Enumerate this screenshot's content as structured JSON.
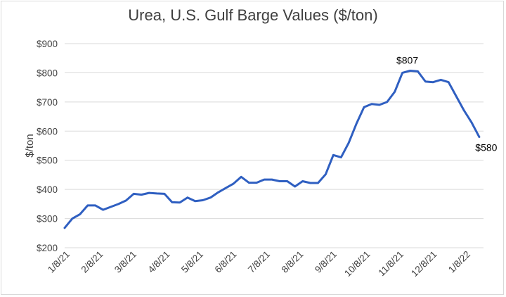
{
  "chart_data": {
    "type": "line",
    "title": "Urea, U.S. Gulf Barge Values ($/ton)",
    "xlabel": "",
    "ylabel": "$/ton",
    "ylim": [
      200,
      900
    ],
    "y_ticks": [
      "$200",
      "$300",
      "$400",
      "$500",
      "$600",
      "$700",
      "$800",
      "$900"
    ],
    "y_tick_values": [
      200,
      300,
      400,
      500,
      600,
      700,
      800,
      900
    ],
    "x_ticks": [
      "1/8/21",
      "2/8/21",
      "3/8/21",
      "4/8/21",
      "5/8/21",
      "6/8/21",
      "7/8/21",
      "8/8/21",
      "9/8/21",
      "10/8/21",
      "11/8/21",
      "12/8/21",
      "1/8/22"
    ],
    "grid": true,
    "legend": "none",
    "series": [
      {
        "name": "Urea, U.S. Gulf Barge",
        "color": "#2f5fc1",
        "values": [
          268,
          300,
          315,
          345,
          345,
          330,
          340,
          350,
          362,
          385,
          382,
          388,
          386,
          385,
          356,
          355,
          372,
          360,
          363,
          372,
          390,
          405,
          420,
          443,
          423,
          423,
          434,
          434,
          428,
          428,
          410,
          428,
          422,
          422,
          452,
          518,
          510,
          560,
          625,
          682,
          693,
          690,
          700,
          735,
          800,
          807,
          805,
          770,
          768,
          776,
          768,
          720,
          672,
          630,
          580
        ]
      }
    ],
    "annotations": [
      {
        "label": "$807",
        "index": 45,
        "value": 807
      },
      {
        "label": "$580",
        "index": 54,
        "value": 580
      }
    ]
  }
}
